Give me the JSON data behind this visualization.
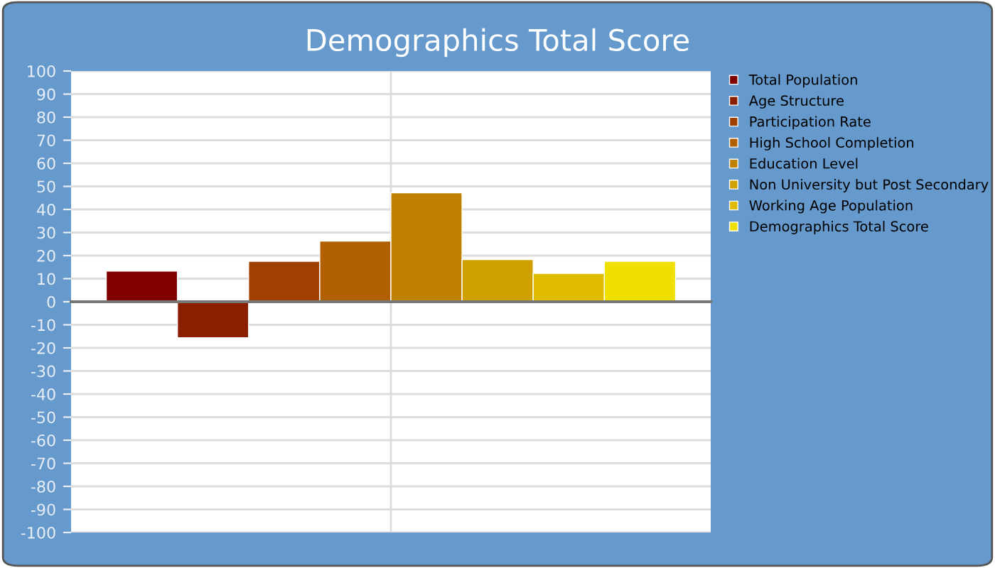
{
  "chart_data": {
    "type": "bar",
    "title": "Demographics Total Score",
    "categories": [
      null
    ],
    "series": [
      {
        "name": "Total Population",
        "color": "#800000",
        "values": [
          13.3
        ]
      },
      {
        "name": "Age Structure",
        "color": "#8b1e00",
        "values": [
          -15.6
        ]
      },
      {
        "name": "Participation Rate",
        "color": "#a04000",
        "values": [
          17.5
        ]
      },
      {
        "name": "High School Completion",
        "color": "#b06000",
        "values": [
          26.3
        ]
      },
      {
        "name": "Education Level",
        "color": "#c08000",
        "values": [
          47.2
        ]
      },
      {
        "name": "Non University but Post Secondary",
        "color": "#d0a000",
        "values": [
          18.3
        ]
      },
      {
        "name": "Working Age Population",
        "color": "#e0bc00",
        "values": [
          12.3
        ]
      },
      {
        "name": "Demographics Total Score",
        "color": "#f0e000",
        "values": [
          17.5
        ]
      }
    ],
    "ylim": [
      -100,
      100
    ],
    "yticks": [
      -100,
      -90,
      -80,
      -70,
      -60,
      -50,
      -40,
      -30,
      -20,
      -10,
      0,
      10,
      20,
      30,
      40,
      50,
      60,
      70,
      80,
      90,
      100
    ],
    "grid": true,
    "legend": "right"
  }
}
